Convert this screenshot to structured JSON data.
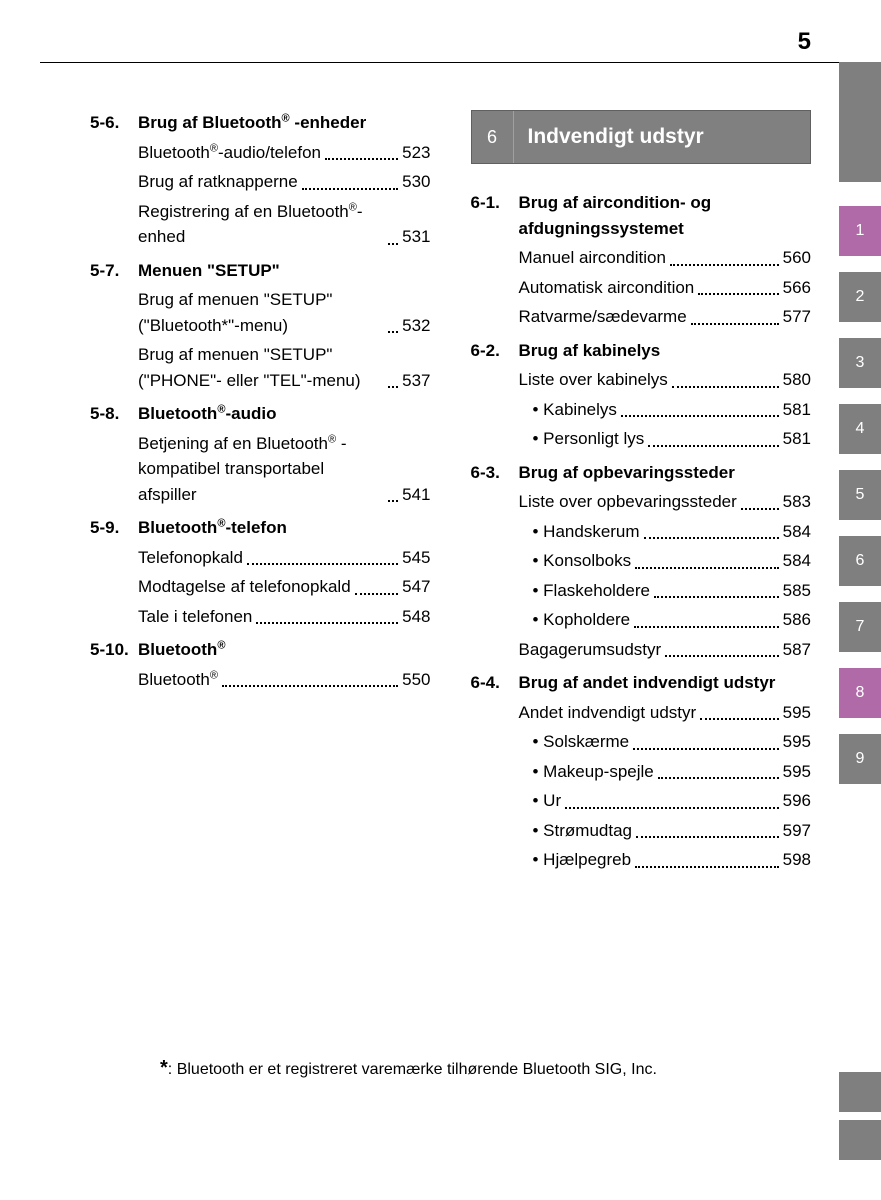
{
  "page_number": "5",
  "colors": {
    "tab_gray": "#7f7f7f",
    "tab_highlight": "#b06aa8",
    "text": "#000000",
    "bg": "#ffffff",
    "chapter_bg": "#808080",
    "chapter_text": "#ffffff"
  },
  "side_tabs": [
    {
      "label": "",
      "color": "#7f7f7f",
      "type": "top-stub"
    },
    {
      "label": "1",
      "color": "#b06aa8"
    },
    {
      "label": "2",
      "color": "#7f7f7f"
    },
    {
      "label": "3",
      "color": "#7f7f7f"
    },
    {
      "label": "4",
      "color": "#7f7f7f"
    },
    {
      "label": "5",
      "color": "#7f7f7f"
    },
    {
      "label": "6",
      "color": "#7f7f7f"
    },
    {
      "label": "7",
      "color": "#7f7f7f"
    },
    {
      "label": "8",
      "color": "#b06aa8"
    },
    {
      "label": "9",
      "color": "#7f7f7f"
    }
  ],
  "bottom_tabs": [
    {
      "color": "#7f7f7f"
    },
    {
      "color": "#7f7f7f"
    }
  ],
  "left_sections": [
    {
      "num": "5-6.",
      "title_html": "Brug af Bluetooth<sup>®</sup> -enheder",
      "entries": [
        {
          "label_html": "Bluetooth<sup>®</sup>-audio/telefon",
          "page": "523"
        },
        {
          "label_html": "Brug af ratknapperne",
          "page": "530"
        },
        {
          "label_html": "Registrering af en Bluetooth<sup>®</sup>-enhed",
          "page": "531"
        }
      ]
    },
    {
      "num": "5-7.",
      "title_html": "Menuen \"SETUP\"",
      "entries": [
        {
          "label_html": "Brug af menuen \"SETUP\" (\"Bluetooth*\"-menu)",
          "page": "532"
        },
        {
          "label_html": "Brug af menuen \"SETUP\" (\"PHONE\"- eller \"TEL\"-menu)",
          "page": "537"
        }
      ]
    },
    {
      "num": "5-8.",
      "title_html": "Bluetooth<sup>®</sup>-audio",
      "entries": [
        {
          "label_html": "Betjening af en Bluetooth<sup>®</sup> -kompatibel transportabel afspiller",
          "page": "541"
        }
      ]
    },
    {
      "num": "5-9.",
      "title_html": "Bluetooth<sup>®</sup>-telefon",
      "entries": [
        {
          "label_html": "Telefonopkald",
          "page": "545"
        },
        {
          "label_html": "Modtagelse af telefonopkald",
          "page": "547"
        },
        {
          "label_html": "Tale i telefonen",
          "page": "548"
        }
      ]
    },
    {
      "num": "5-10.",
      "title_html": "Bluetooth<sup>®</sup>",
      "entries": [
        {
          "label_html": "Bluetooth<sup>®</sup>",
          "page": "550"
        }
      ]
    }
  ],
  "right_chapter": {
    "num": "6",
    "title": "Indvendigt udstyr"
  },
  "right_sections": [
    {
      "num": "6-1.",
      "title_html": "Brug af aircondition- og afdugningssystemet",
      "entries": [
        {
          "label_html": "Manuel aircondition",
          "page": "560"
        },
        {
          "label_html": "Automatisk aircondition",
          "page": "566"
        },
        {
          "label_html": "Ratvarme/sædevarme",
          "page": "577"
        }
      ]
    },
    {
      "num": "6-2.",
      "title_html": "Brug af kabinelys",
      "entries": [
        {
          "label_html": "Liste over kabinelys",
          "page": "580"
        },
        {
          "label_html": "• Kabinelys",
          "page": "581",
          "sub": true
        },
        {
          "label_html": "• Personligt lys",
          "page": "581",
          "sub": true
        }
      ]
    },
    {
      "num": "6-3.",
      "title_html": "Brug af opbevaringssteder",
      "entries": [
        {
          "label_html": "Liste over opbevaringssteder",
          "page": "583"
        },
        {
          "label_html": "• Handskerum",
          "page": "584",
          "sub": true
        },
        {
          "label_html": "• Konsolboks",
          "page": "584",
          "sub": true
        },
        {
          "label_html": "• Flaskeholdere",
          "page": "585",
          "sub": true
        },
        {
          "label_html": "• Kopholdere",
          "page": "586",
          "sub": true
        },
        {
          "label_html": "Bagagerumsudstyr",
          "page": "587"
        }
      ]
    },
    {
      "num": "6-4.",
      "title_html": "Brug af andet indvendigt udstyr",
      "entries": [
        {
          "label_html": "Andet indvendigt udstyr",
          "page": "595"
        },
        {
          "label_html": "• Solskærme",
          "page": "595",
          "sub": true
        },
        {
          "label_html": "• Makeup-spejle",
          "page": "595",
          "sub": true
        },
        {
          "label_html": "• Ur",
          "page": "596",
          "sub": true
        },
        {
          "label_html": "• Strømudtag",
          "page": "597",
          "sub": true
        },
        {
          "label_html": "• Hjælpegreb",
          "page": "598",
          "sub": true
        }
      ]
    }
  ],
  "footnote": {
    "marker": "*",
    "text": ": Bluetooth er et registreret varemærke tilhørende Bluetooth SIG, Inc."
  }
}
